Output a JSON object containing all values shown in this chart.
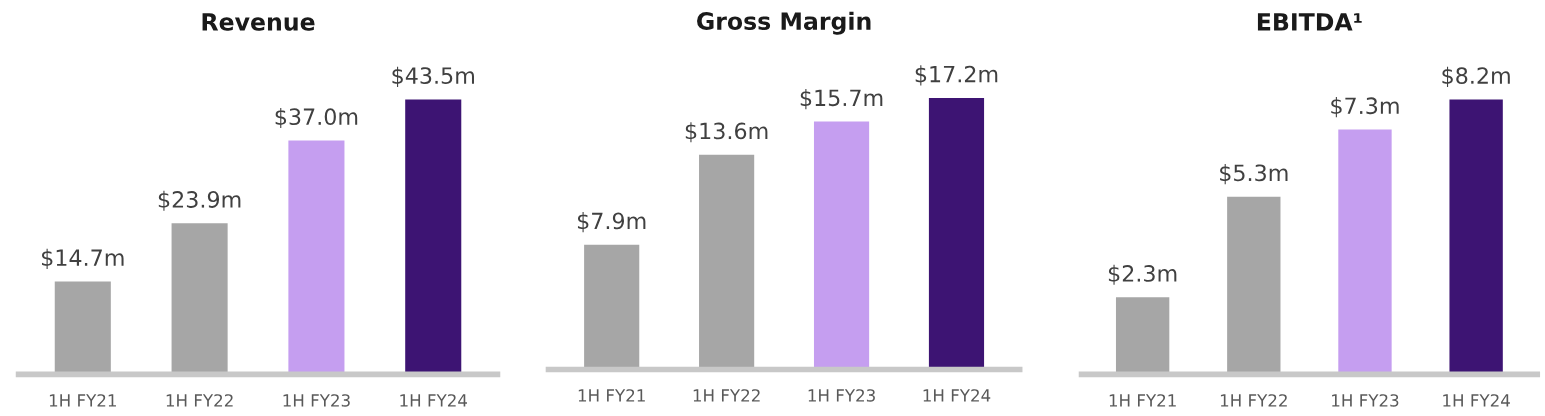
{
  "chart_data": [
    {
      "type": "bar",
      "title": "Revenue",
      "categories": [
        "1H FY21",
        "1H FY22",
        "1H FY23",
        "1H FY24"
      ],
      "values": [
        14.7,
        23.9,
        37.0,
        43.5
      ],
      "colors": [
        "#a6a6a6",
        "#a6a6a6",
        "#c59ef0",
        "#3d1473"
      ],
      "value_labels": [
        "$14.7m",
        "$23.9m",
        "$37.0m",
        "$43.5m"
      ]
    },
    {
      "type": "bar",
      "title": "Gross Margin",
      "categories": [
        "1H FY21",
        "1H FY22",
        "1H FY23",
        "1H FY24"
      ],
      "values": [
        7.9,
        13.6,
        15.7,
        17.2
      ],
      "colors": [
        "#a6a6a6",
        "#a6a6a6",
        "#c59ef0",
        "#3d1473"
      ],
      "value_labels": [
        "$7.9m",
        "$13.6m",
        "$15.7m",
        "$17.2m"
      ]
    },
    {
      "type": "bar",
      "title": "EBITDA¹",
      "categories": [
        "1H FY21",
        "1H FY22",
        "1H FY23",
        "1H FY24"
      ],
      "values": [
        2.3,
        5.3,
        7.3,
        8.2
      ],
      "colors": [
        "#a6a6a6",
        "#a6a6a6",
        "#c59ef0",
        "#3d1473"
      ],
      "value_labels": [
        "$2.3m",
        "$5.3m",
        "$7.3m",
        "$8.2m"
      ]
    }
  ]
}
